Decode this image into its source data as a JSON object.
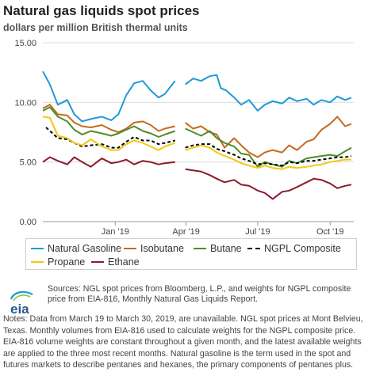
{
  "chart_data": {
    "type": "line",
    "title": "Natural gas liquids spot prices",
    "subtitle": "dollars per million British thermal units",
    "ylim": [
      0,
      15
    ],
    "yticks": [
      "0.00",
      "5.00",
      "10.00",
      "15.00"
    ],
    "xlim": [
      "2018-10-01",
      "2019-10-31"
    ],
    "xticks": [
      {
        "date": "2019-01-01",
        "label": "Jan '19"
      },
      {
        "date": "2019-04-01",
        "label": "Apr '19"
      },
      {
        "date": "2019-07-01",
        "label": "Jul '19"
      },
      {
        "date": "2019-10-01",
        "label": "Oct '19"
      }
    ],
    "grid": "horizontal",
    "legend_position": "bottom",
    "gap": [
      "2019-03-19",
      "2019-03-30"
    ],
    "series": [
      {
        "name": "Natural Gasoline",
        "color": "#1f9ad8",
        "dash": false,
        "x": [
          "2018-10-01",
          "2018-10-10",
          "2018-10-20",
          "2018-11-01",
          "2018-11-10",
          "2018-11-20",
          "2018-12-01",
          "2018-12-15",
          "2018-12-27",
          "2019-01-05",
          "2019-01-15",
          "2019-01-25",
          "2019-02-05",
          "2019-02-15",
          "2019-02-25",
          "2019-03-05",
          "2019-03-18",
          "2019-03-31",
          "2019-04-10",
          "2019-04-20",
          "2019-05-01",
          "2019-05-10",
          "2019-05-15",
          "2019-05-22",
          "2019-06-01",
          "2019-06-10",
          "2019-06-20",
          "2019-07-01",
          "2019-07-10",
          "2019-07-20",
          "2019-08-01",
          "2019-08-10",
          "2019-08-20",
          "2019-09-01",
          "2019-09-10",
          "2019-09-20",
          "2019-10-01",
          "2019-10-10",
          "2019-10-20",
          "2019-10-28"
        ],
        "y": [
          12.6,
          11.5,
          9.8,
          10.2,
          9.0,
          8.4,
          8.6,
          8.8,
          8.5,
          9.0,
          10.6,
          11.6,
          11.8,
          11.0,
          10.4,
          10.7,
          11.8,
          11.5,
          12.0,
          11.8,
          12.2,
          12.3,
          11.2,
          11.0,
          10.4,
          9.8,
          10.2,
          9.3,
          9.8,
          10.1,
          9.9,
          10.4,
          10.1,
          10.3,
          9.8,
          10.2,
          10.0,
          10.5,
          10.2,
          10.4
        ]
      },
      {
        "name": "Isobutane",
        "color": "#c46a1e",
        "dash": false,
        "x": [
          "2018-10-01",
          "2018-10-10",
          "2018-10-20",
          "2018-11-01",
          "2018-11-10",
          "2018-11-20",
          "2018-12-01",
          "2018-12-15",
          "2018-12-27",
          "2019-01-05",
          "2019-01-15",
          "2019-01-25",
          "2019-02-05",
          "2019-02-15",
          "2019-02-25",
          "2019-03-05",
          "2019-03-18",
          "2019-03-31",
          "2019-04-10",
          "2019-04-20",
          "2019-05-01",
          "2019-05-10",
          "2019-05-20",
          "2019-06-01",
          "2019-06-10",
          "2019-06-20",
          "2019-07-01",
          "2019-07-10",
          "2019-07-20",
          "2019-08-01",
          "2019-08-10",
          "2019-08-20",
          "2019-09-01",
          "2019-09-10",
          "2019-09-20",
          "2019-10-01",
          "2019-10-10",
          "2019-10-20",
          "2019-10-28"
        ],
        "y": [
          9.5,
          9.8,
          9.0,
          8.9,
          8.3,
          8.0,
          7.9,
          8.1,
          7.7,
          7.5,
          7.8,
          8.3,
          8.4,
          8.1,
          7.6,
          7.8,
          8.0,
          8.3,
          7.8,
          8.0,
          7.5,
          7.3,
          6.2,
          7.0,
          6.4,
          5.8,
          5.4,
          5.8,
          6.0,
          5.8,
          6.4,
          6.0,
          6.7,
          6.9,
          7.7,
          8.2,
          8.8,
          8.0,
          8.2
        ]
      },
      {
        "name": "Butane",
        "color": "#4f8d2a",
        "dash": false,
        "x": [
          "2018-10-01",
          "2018-10-10",
          "2018-10-20",
          "2018-11-01",
          "2018-11-10",
          "2018-11-20",
          "2018-12-01",
          "2018-12-15",
          "2018-12-27",
          "2019-01-05",
          "2019-01-15",
          "2019-01-25",
          "2019-02-05",
          "2019-02-15",
          "2019-02-25",
          "2019-03-05",
          "2019-03-18",
          "2019-03-31",
          "2019-04-10",
          "2019-04-20",
          "2019-05-01",
          "2019-05-10",
          "2019-05-20",
          "2019-06-01",
          "2019-06-10",
          "2019-06-20",
          "2019-07-01",
          "2019-07-10",
          "2019-07-20",
          "2019-08-01",
          "2019-08-10",
          "2019-08-20",
          "2019-09-01",
          "2019-09-10",
          "2019-09-20",
          "2019-10-01",
          "2019-10-10",
          "2019-10-20",
          "2019-10-28"
        ],
        "y": [
          9.3,
          9.6,
          8.8,
          8.4,
          7.7,
          7.3,
          7.6,
          7.4,
          7.2,
          7.4,
          7.7,
          8.0,
          7.6,
          7.4,
          7.1,
          7.3,
          7.6,
          7.8,
          7.5,
          7.2,
          7.6,
          7.0,
          6.6,
          6.3,
          5.7,
          5.6,
          4.6,
          5.0,
          4.8,
          4.6,
          5.1,
          4.9,
          5.3,
          5.4,
          5.5,
          5.6,
          5.5,
          5.9,
          6.2
        ]
      },
      {
        "name": "NGPL Composite",
        "color": "#000000",
        "dash": true,
        "x": [
          "2018-10-05",
          "2018-10-20",
          "2018-11-01",
          "2018-11-10",
          "2018-11-20",
          "2018-12-01",
          "2018-12-15",
          "2018-12-27",
          "2019-01-05",
          "2019-01-15",
          "2019-01-25",
          "2019-02-05",
          "2019-02-15",
          "2019-02-25",
          "2019-03-05",
          "2019-03-18",
          "2019-03-31",
          "2019-04-10",
          "2019-04-20",
          "2019-05-01",
          "2019-05-10",
          "2019-05-20",
          "2019-06-01",
          "2019-06-10",
          "2019-06-20",
          "2019-07-01",
          "2019-07-10",
          "2019-07-20",
          "2019-08-01",
          "2019-08-10",
          "2019-08-20",
          "2019-09-01",
          "2019-09-10",
          "2019-09-20",
          "2019-10-01",
          "2019-10-10",
          "2019-10-20",
          "2019-10-28"
        ],
        "y": [
          7.9,
          7.0,
          6.9,
          6.6,
          6.3,
          6.4,
          6.5,
          6.2,
          6.2,
          6.7,
          7.1,
          6.8,
          6.8,
          6.5,
          6.6,
          6.8,
          6.2,
          6.4,
          6.5,
          6.5,
          6.1,
          5.9,
          5.6,
          5.3,
          5.1,
          4.8,
          4.9,
          4.8,
          4.7,
          5.0,
          4.9,
          5.1,
          5.1,
          5.2,
          5.3,
          5.4,
          5.4,
          5.5
        ]
      },
      {
        "name": "Propane",
        "color": "#f2c80f",
        "dash": false,
        "x": [
          "2018-10-01",
          "2018-10-10",
          "2018-10-20",
          "2018-11-01",
          "2018-11-10",
          "2018-11-20",
          "2018-12-01",
          "2018-12-15",
          "2018-12-27",
          "2019-01-05",
          "2019-01-15",
          "2019-01-25",
          "2019-02-05",
          "2019-02-15",
          "2019-02-25",
          "2019-03-05",
          "2019-03-18",
          "2019-03-31",
          "2019-04-10",
          "2019-04-20",
          "2019-05-01",
          "2019-05-10",
          "2019-05-20",
          "2019-06-01",
          "2019-06-10",
          "2019-06-20",
          "2019-07-01",
          "2019-07-10",
          "2019-07-20",
          "2019-08-01",
          "2019-08-10",
          "2019-08-20",
          "2019-09-01",
          "2019-09-10",
          "2019-09-20",
          "2019-10-01",
          "2019-10-10",
          "2019-10-20",
          "2019-10-28"
        ],
        "y": [
          8.8,
          8.7,
          7.2,
          7.0,
          6.6,
          6.4,
          6.9,
          6.3,
          6.0,
          6.0,
          6.5,
          6.8,
          6.6,
          6.3,
          6.0,
          6.3,
          6.6,
          6.0,
          6.2,
          6.4,
          6.2,
          5.8,
          5.5,
          5.2,
          4.9,
          4.7,
          4.5,
          4.7,
          4.5,
          4.4,
          4.6,
          4.5,
          4.6,
          4.7,
          4.8,
          5.0,
          5.1,
          5.2,
          5.2
        ]
      },
      {
        "name": "Ethane",
        "color": "#8b1a2e",
        "dash": false,
        "x": [
          "2018-10-01",
          "2018-10-10",
          "2018-10-20",
          "2018-11-01",
          "2018-11-10",
          "2018-11-20",
          "2018-12-01",
          "2018-12-15",
          "2018-12-27",
          "2019-01-05",
          "2019-01-15",
          "2019-01-25",
          "2019-02-05",
          "2019-02-15",
          "2019-02-25",
          "2019-03-05",
          "2019-03-18",
          "2019-03-31",
          "2019-04-10",
          "2019-04-20",
          "2019-05-01",
          "2019-05-10",
          "2019-05-20",
          "2019-06-01",
          "2019-06-10",
          "2019-06-20",
          "2019-07-01",
          "2019-07-10",
          "2019-07-20",
          "2019-08-01",
          "2019-08-10",
          "2019-08-20",
          "2019-09-01",
          "2019-09-10",
          "2019-09-20",
          "2019-10-01",
          "2019-10-10",
          "2019-10-20",
          "2019-10-28"
        ],
        "y": [
          5.0,
          5.4,
          5.1,
          4.8,
          5.4,
          5.0,
          4.6,
          5.3,
          4.9,
          5.0,
          5.2,
          4.8,
          5.1,
          5.0,
          4.8,
          4.9,
          5.0,
          4.4,
          4.3,
          4.2,
          3.9,
          3.6,
          3.3,
          3.5,
          3.1,
          3.0,
          2.6,
          2.4,
          1.9,
          2.5,
          2.6,
          2.9,
          3.3,
          3.6,
          3.5,
          3.2,
          2.8,
          3.0,
          3.1
        ]
      }
    ]
  },
  "legend": {
    "row1": [
      "Natural Gasoline",
      "Isobutane",
      "Butane",
      "NGPL Composite"
    ],
    "row2": [
      "Propane",
      "Ethane"
    ]
  },
  "logo": {
    "text": "eia"
  },
  "sources": "Sources: NGL spot prices from Bloomberg, L.P., and weights for NGPL composite price from EIA-816, Monthly Natural Gas Liquids Report.",
  "notes": "Notes: Data from March 19 to March 30, 2019, are unavailable. NGL spot prices at Mont Belvieu, Texas. Monthly volumes from EIA-816 used to calculate weights for the NGPL composite price. EIA-816 volume weights are constant throughout a given month, and the latest available weights are applied to the three most recent months. Natural gasoline is the term used in the spot and futures markets to describe pentanes and hexanes, the primary components of pentanes plus."
}
